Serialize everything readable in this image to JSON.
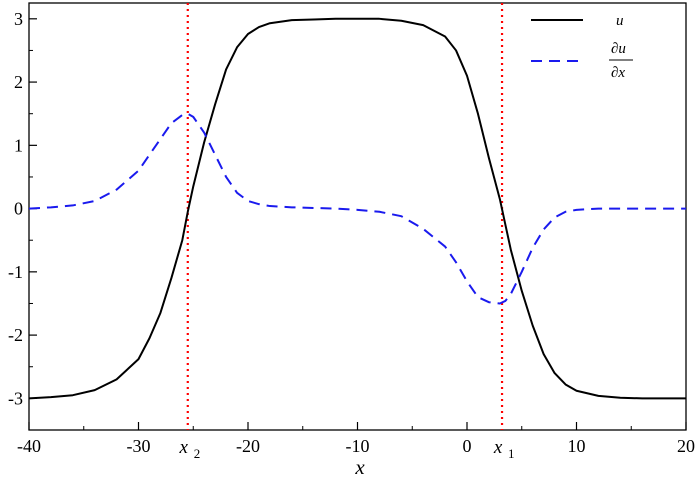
{
  "chart_data": {
    "type": "line",
    "title": "",
    "xlabel": "x",
    "ylabel": "",
    "xlim": [
      -40,
      20
    ],
    "ylim": [
      -3.5,
      3.25
    ],
    "x_ticks": [
      -40,
      -30,
      -20,
      -10,
      0,
      10,
      20
    ],
    "x_tick_labels": [
      "-40",
      "-30",
      "-20",
      "-10",
      "0",
      "10",
      "20"
    ],
    "y_ticks": [
      -3,
      -2,
      -1,
      0,
      1,
      2,
      3
    ],
    "y_tick_labels": [
      "-3",
      "-2",
      "-1",
      "0",
      "1",
      "2",
      "3"
    ],
    "grid": false,
    "legend_position": "top-right",
    "x": [
      -40,
      -38,
      -36,
      -34,
      -32,
      -30,
      -29,
      -28,
      -27,
      -26,
      -25.5,
      -25,
      -24,
      -23,
      -22,
      -21,
      -20,
      -19,
      -18,
      -16,
      -14,
      -12,
      -10,
      -8,
      -6,
      -4,
      -2,
      -1,
      0,
      1,
      2,
      3,
      3.5,
      4,
      5,
      6,
      7,
      8,
      9,
      10,
      12,
      14,
      16,
      18,
      20
    ],
    "series": [
      {
        "name": "u",
        "color": "#000000",
        "style": "solid",
        "values": [
          -3.0,
          -2.98,
          -2.95,
          -2.87,
          -2.7,
          -2.38,
          -2.05,
          -1.65,
          -1.1,
          -0.5,
          -0.05,
          0.35,
          1.05,
          1.65,
          2.2,
          2.55,
          2.76,
          2.87,
          2.93,
          2.98,
          2.99,
          3.0,
          3.0,
          3.0,
          2.97,
          2.9,
          2.72,
          2.5,
          2.1,
          1.5,
          0.8,
          0.15,
          -0.25,
          -0.65,
          -1.3,
          -1.85,
          -2.3,
          -2.6,
          -2.78,
          -2.88,
          -2.96,
          -2.99,
          -3.0,
          -3.0,
          -3.0
        ]
      },
      {
        "name": "∂u/∂x",
        "color": "#1a1aee",
        "style": "dashed",
        "values": [
          0.0,
          0.02,
          0.05,
          0.12,
          0.3,
          0.6,
          0.85,
          1.1,
          1.35,
          1.48,
          1.5,
          1.45,
          1.2,
          0.85,
          0.5,
          0.25,
          0.12,
          0.07,
          0.04,
          0.02,
          0.01,
          0.0,
          -0.02,
          -0.05,
          -0.12,
          -0.32,
          -0.6,
          -0.85,
          -1.15,
          -1.4,
          -1.48,
          -1.5,
          -1.46,
          -1.35,
          -1.0,
          -0.62,
          -0.33,
          -0.14,
          -0.05,
          -0.02,
          0.0,
          0.0,
          0.0,
          0.0,
          0.0
        ]
      }
    ],
    "markers": [
      {
        "x": -25.5,
        "color": "#ff0000",
        "label_main": "x",
        "label_sub": "2"
      },
      {
        "x": 3.2,
        "color": "#ff0000",
        "label_main": "x",
        "label_sub": "1"
      }
    ],
    "legend": {
      "u_label": "u",
      "du_num": "∂u",
      "du_den": "∂x"
    }
  }
}
